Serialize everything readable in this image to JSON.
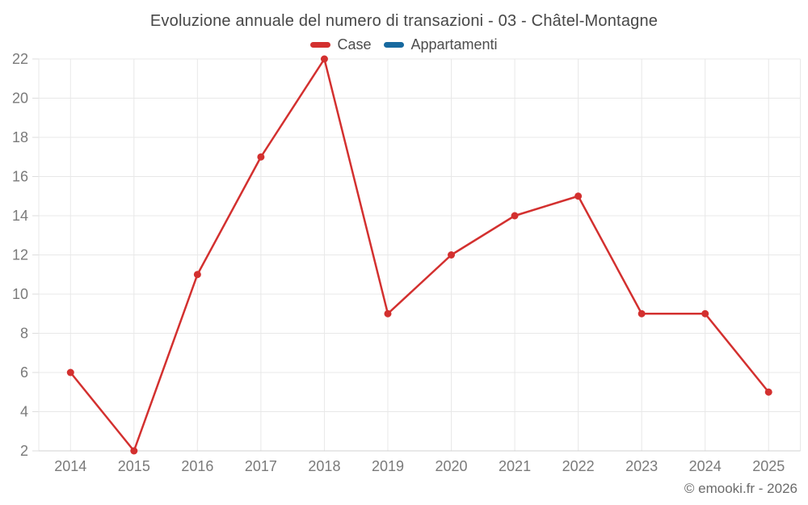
{
  "chart_data": {
    "type": "line",
    "title": "Evoluzione annuale del numero di transazioni - 03 - Châtel-Montagne",
    "categories": [
      "2014",
      "2015",
      "2016",
      "2017",
      "2018",
      "2019",
      "2020",
      "2021",
      "2022",
      "2023",
      "2024",
      "2025"
    ],
    "series": [
      {
        "name": "Case",
        "color": "#d3302f",
        "values": [
          6,
          2,
          11,
          17,
          22,
          9,
          12,
          14,
          15,
          9,
          9,
          5
        ]
      },
      {
        "name": "Appartamenti",
        "color": "#17699f",
        "values": []
      }
    ],
    "xlabel": "",
    "ylabel": "",
    "ylim": [
      2,
      22
    ],
    "yticks": [
      2,
      4,
      6,
      8,
      10,
      12,
      14,
      16,
      18,
      20,
      22
    ],
    "grid": true,
    "legend_position": "top"
  },
  "footer": "© emooki.fr - 2026",
  "colors": {
    "case_series": "#d3302f",
    "appartamenti_series": "#17699f",
    "title_text": "#474747",
    "axis_label_text": "#7a7a7a",
    "footer_text": "#6b6b6b",
    "gridline": "#e8e8e8",
    "tick": "#dedede",
    "axis_line": "#d0d0d0",
    "background": "#ffffff"
  }
}
